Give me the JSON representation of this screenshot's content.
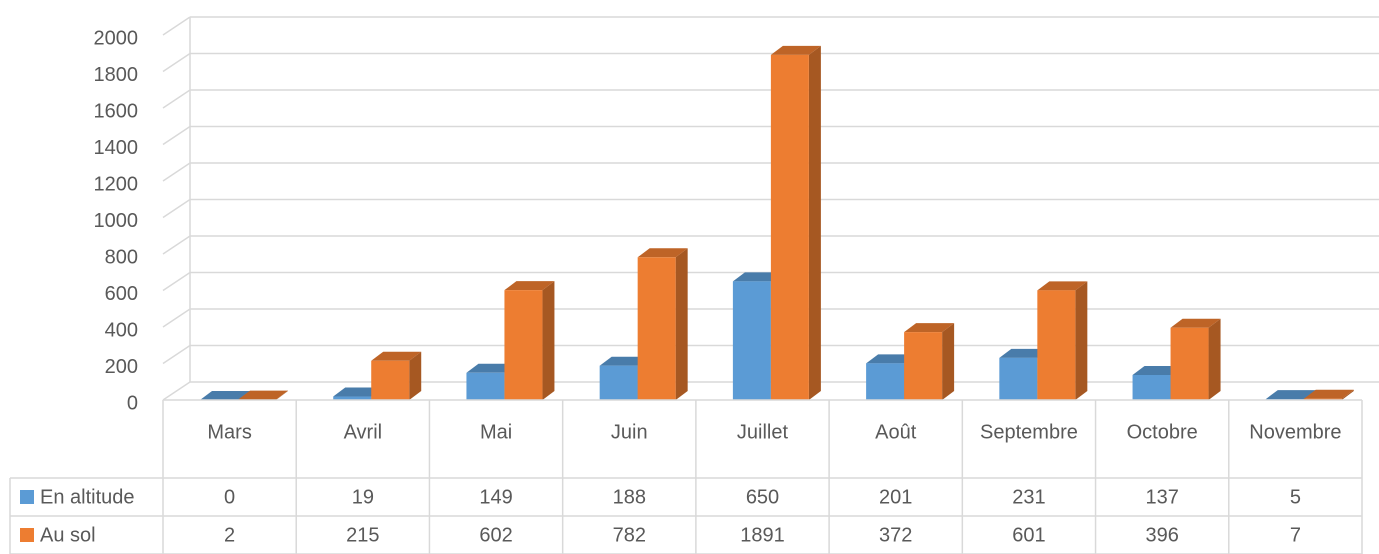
{
  "chart_data": {
    "type": "bar3d",
    "categories": [
      "Mars",
      "Avril",
      "Mai",
      "Juin",
      "Juillet",
      "Août",
      "Septembre",
      "Octobre",
      "Novembre"
    ],
    "series": [
      {
        "name": "En altitude",
        "color": "#5b9bd5",
        "values": [
          0,
          19,
          149,
          188,
          650,
          201,
          231,
          137,
          5
        ]
      },
      {
        "name": "Au sol",
        "color": "#ed7d31",
        "values": [
          2,
          215,
          602,
          782,
          1891,
          372,
          601,
          396,
          7
        ]
      }
    ],
    "ylim": [
      0,
      2000
    ],
    "yticks": [
      0,
      200,
      400,
      600,
      800,
      1000,
      1200,
      1400,
      1600,
      1800,
      2000
    ],
    "grid": true
  }
}
